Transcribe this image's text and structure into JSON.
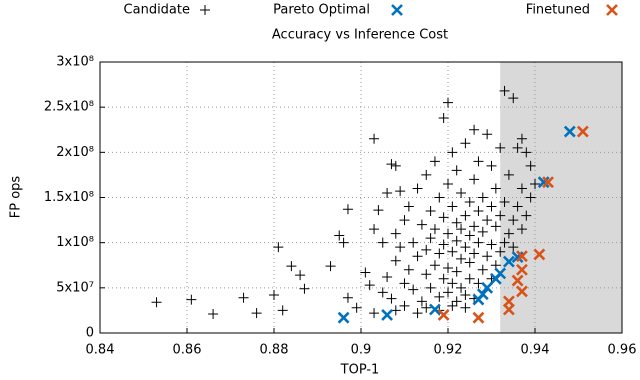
{
  "chart_data": {
    "type": "scatter",
    "title": "Accuracy vs Inference Cost",
    "x_label": "TOP-1",
    "y_label": "FP ops",
    "xlim": [
      0.84,
      0.96
    ],
    "ylim": [
      0,
      300000000
    ],
    "xticks": [
      0.84,
      0.86,
      0.88,
      0.9,
      0.92,
      0.94,
      0.96
    ],
    "yticks": [
      0,
      {
        "value": 50000000,
        "label": "5x10⁷"
      },
      {
        "value": 100000000,
        "label": "1x10⁸"
      },
      {
        "value": 150000000,
        "label": "1.5x10⁸"
      },
      {
        "value": 200000000,
        "label": "2x10⁸"
      },
      {
        "value": 250000000,
        "label": "2.5x10⁸"
      },
      {
        "value": 300000000,
        "label": "3x10⁸"
      }
    ],
    "grid": true,
    "highlight_x": [
      0.932,
      0.96
    ],
    "highlight_color": "#d9d9d9",
    "legend": "top",
    "series": [
      {
        "name": "Candidate",
        "color": "#000000",
        "marker": "plus",
        "x": [
          0.853,
          0.861,
          0.866,
          0.873,
          0.876,
          0.88,
          0.881,
          0.882,
          0.884,
          0.886,
          0.887,
          0.893,
          0.895,
          0.896,
          0.897,
          0.897,
          0.899,
          0.901,
          0.902,
          0.903,
          0.903,
          0.904,
          0.905,
          0.906,
          0.907,
          0.908,
          0.909,
          0.905,
          0.906,
          0.907,
          0.908,
          0.908,
          0.909,
          0.91,
          0.91,
          0.911,
          0.911,
          0.912,
          0.912,
          0.913,
          0.913,
          0.914,
          0.914,
          0.915,
          0.915,
          0.915,
          0.916,
          0.916,
          0.916,
          0.917,
          0.917,
          0.917,
          0.918,
          0.918,
          0.918,
          0.919,
          0.919,
          0.919,
          0.919,
          0.92,
          0.92,
          0.92,
          0.92,
          0.92,
          0.921,
          0.921,
          0.921,
          0.921,
          0.922,
          0.922,
          0.922,
          0.922,
          0.922,
          0.923,
          0.923,
          0.923,
          0.923,
          0.924,
          0.924,
          0.924,
          0.924,
          0.925,
          0.925,
          0.925,
          0.925,
          0.926,
          0.926,
          0.926,
          0.926,
          0.926,
          0.927,
          0.927,
          0.927,
          0.927,
          0.928,
          0.928,
          0.928,
          0.929,
          0.929,
          0.929,
          0.93,
          0.93,
          0.93,
          0.93,
          0.931,
          0.931,
          0.931,
          0.932,
          0.932,
          0.932,
          0.933,
          0.933,
          0.933,
          0.934,
          0.934,
          0.935,
          0.935,
          0.935,
          0.936,
          0.936,
          0.937,
          0.937,
          0.937,
          0.938,
          0.938,
          0.939,
          0.939,
          0.94,
          0.903,
          0.908,
          0.91,
          0.913,
          0.915,
          0.918,
          0.921,
          0.924
        ],
        "y": [
          34000000,
          37000000,
          21000000,
          39000000,
          22000000,
          42000000,
          95000000,
          25000000,
          74000000,
          64000000,
          49000000,
          74000000,
          108000000,
          100000000,
          137000000,
          39000000,
          28000000,
          67000000,
          53000000,
          115000000,
          215000000,
          136000000,
          100000000,
          155000000,
          187000000,
          185000000,
          157000000,
          45000000,
          62000000,
          38000000,
          80000000,
          110000000,
          95000000,
          55000000,
          125000000,
          70000000,
          140000000,
          48000000,
          100000000,
          85000000,
          160000000,
          35000000,
          120000000,
          65000000,
          92000000,
          175000000,
          50000000,
          105000000,
          135000000,
          75000000,
          115000000,
          190000000,
          40000000,
          88000000,
          150000000,
          60000000,
          98000000,
          128000000,
          238000000,
          45000000,
          72000000,
          110000000,
          165000000,
          255000000,
          55000000,
          90000000,
          140000000,
          200000000,
          35000000,
          68000000,
          102000000,
          122000000,
          180000000,
          50000000,
          82000000,
          115000000,
          155000000,
          42000000,
          95000000,
          130000000,
          210000000,
          60000000,
          78000000,
          108000000,
          145000000,
          38000000,
          88000000,
          118000000,
          170000000,
          225000000,
          55000000,
          100000000,
          135000000,
          190000000,
          70000000,
          112000000,
          150000000,
          85000000,
          125000000,
          220000000,
          60000000,
          98000000,
          140000000,
          185000000,
          75000000,
          118000000,
          160000000,
          90000000,
          130000000,
          205000000,
          100000000,
          145000000,
          268000000,
          110000000,
          175000000,
          95000000,
          125000000,
          260000000,
          140000000,
          205000000,
          115000000,
          160000000,
          215000000,
          130000000,
          200000000,
          150000000,
          185000000,
          165000000,
          22000000,
          25000000,
          30000000,
          22000000,
          28000000,
          25000000,
          30000000,
          28000000
        ]
      },
      {
        "name": "Pareto Optimal",
        "color": "#0072bd",
        "marker": "cross",
        "x": [
          0.896,
          0.906,
          0.917,
          0.927,
          0.928,
          0.929,
          0.931,
          0.932,
          0.934,
          0.936,
          0.942,
          0.948
        ],
        "y": [
          17000000,
          20000000,
          26000000,
          37000000,
          43000000,
          50000000,
          60000000,
          66000000,
          79000000,
          84000000,
          167000000,
          223000000
        ]
      },
      {
        "name": "Finetuned",
        "color": "#d95319",
        "marker": "cross",
        "x": [
          0.919,
          0.927,
          0.934,
          0.934,
          0.937,
          0.936,
          0.937,
          0.937,
          0.941,
          0.943,
          0.951
        ],
        "y": [
          20000000,
          17000000,
          26000000,
          35000000,
          46000000,
          58000000,
          70000000,
          85000000,
          87000000,
          167000000,
          223000000
        ]
      }
    ]
  }
}
